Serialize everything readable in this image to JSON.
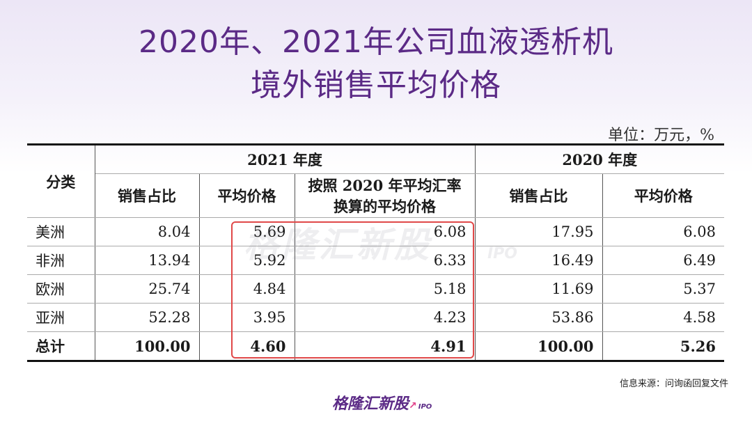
{
  "title": {
    "line1": "2020年、2021年公司血液透析机",
    "line2": "境外销售平均价格"
  },
  "unit": "单位：万元，%",
  "table": {
    "header": {
      "category": "分类",
      "year_2021": "2021 年度",
      "year_2020": "2020 年度",
      "sales_share": "销售占比",
      "avg_price": "平均价格",
      "converted_price_line1": "按照 2020 年平均汇率",
      "converted_price_line2": "换算的平均价格",
      "sales_share_2020": "销售占比",
      "avg_price_2020": "平均价格"
    },
    "rows": [
      {
        "category": "美洲",
        "share_2021": "8.04",
        "price_2021": "5.69",
        "converted_2021": "6.08",
        "share_2020": "17.95",
        "price_2020": "6.08"
      },
      {
        "category": "非洲",
        "share_2021": "13.94",
        "price_2021": "5.92",
        "converted_2021": "6.33",
        "share_2020": "16.49",
        "price_2020": "6.49"
      },
      {
        "category": "欧洲",
        "share_2021": "25.74",
        "price_2021": "4.84",
        "converted_2021": "5.18",
        "share_2020": "11.69",
        "price_2020": "5.37"
      },
      {
        "category": "亚洲",
        "share_2021": "52.28",
        "price_2021": "3.95",
        "converted_2021": "4.23",
        "share_2020": "53.86",
        "price_2020": "4.58"
      }
    ],
    "total": {
      "category": "总计",
      "share_2021": "100.00",
      "price_2021": "4.60",
      "converted_2021": "4.91",
      "share_2020": "100.00",
      "price_2020": "5.26"
    }
  },
  "watermark": {
    "text": "格隆汇新股",
    "suffix": "IPO"
  },
  "source": "信息来源：问询函回复文件",
  "logo": {
    "text": "格隆汇新股",
    "suffix": "IPO",
    "arrow": "↗"
  },
  "colors": {
    "title": "#5b2a86",
    "highlight": "#e04848"
  }
}
